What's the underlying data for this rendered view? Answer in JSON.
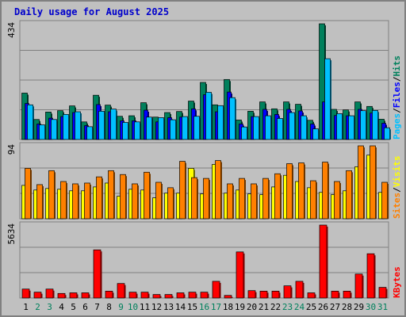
{
  "title": "Daily usage for August 2025",
  "colors": {
    "hits": "#00805c",
    "files": "#0000ff",
    "pages": "#00c0ff",
    "visits": "#ffff00",
    "sites": "#ff8000",
    "kbytes": "#ff0000",
    "separator": "#000000",
    "panel": "#c0c0c0",
    "weekday_label": "#000000",
    "weekend_label": "#00805c"
  },
  "chart_data": [
    {
      "type": "bar",
      "panel": "hits-files-pages",
      "ymax_label": "434",
      "ylim": [
        0,
        434
      ],
      "legend": [
        "Pages",
        "/",
        "Files",
        "/",
        "Hits"
      ],
      "categories": [
        "1",
        "2",
        "3",
        "4",
        "5",
        "6",
        "7",
        "8",
        "9",
        "10",
        "11",
        "12",
        "13",
        "14",
        "15",
        "16",
        "17",
        "18",
        "19",
        "20",
        "21",
        "22",
        "23",
        "24",
        "25",
        "26",
        "27",
        "28",
        "29",
        "30",
        "31"
      ],
      "weekend_days": [
        "2",
        "3",
        "9",
        "10",
        "16",
        "17",
        "23",
        "24",
        "30",
        "31"
      ],
      "series": [
        {
          "name": "Hits",
          "values": [
            174,
            75,
            103,
            108,
            126,
            66,
            166,
            129,
            87,
            89,
            138,
            84,
            101,
            105,
            144,
            214,
            130,
            225,
            73,
            106,
            141,
            115,
            141,
            132,
            72,
            434,
            113,
            111,
            141,
            124,
            76
          ]
        },
        {
          "name": "Files",
          "values": [
            135,
            58,
            80,
            86,
            101,
            52,
            131,
            104,
            70,
            70,
            110,
            66,
            82,
            84,
            115,
            168,
            104,
            178,
            58,
            86,
            113,
            94,
            113,
            107,
            58,
            141,
            90,
            89,
            113,
            99,
            61
          ]
        },
        {
          "name": "Pages",
          "values": [
            130,
            55,
            75,
            94,
            104,
            48,
            106,
            114,
            64,
            66,
            84,
            82,
            74,
            86,
            87,
            177,
            127,
            157,
            47,
            86,
            89,
            79,
            101,
            89,
            40,
            303,
            97,
            89,
            108,
            109,
            44
          ]
        }
      ]
    },
    {
      "type": "bar",
      "panel": "visits-sites",
      "ymax_label": "94",
      "ylim": [
        0,
        94
      ],
      "legend": [
        "Sites",
        "/",
        "Visits"
      ],
      "series": [
        {
          "name": "Visits",
          "values": [
            43,
            37,
            39,
            38,
            36,
            36,
            41,
            46,
            29,
            38,
            37,
            27,
            33,
            33,
            65,
            32,
            70,
            33,
            37,
            32,
            31,
            41,
            56,
            48,
            40,
            34,
            31,
            36,
            67,
            82,
            34
          ]
        },
        {
          "name": "Sites",
          "values": [
            65,
            44,
            62,
            48,
            45,
            46,
            54,
            62,
            57,
            45,
            60,
            47,
            40,
            74,
            53,
            52,
            75,
            45,
            52,
            45,
            52,
            58,
            71,
            72,
            49,
            73,
            48,
            62,
            94,
            94,
            47
          ]
        }
      ]
    },
    {
      "type": "bar",
      "panel": "kbytes",
      "ymax_label": "5634",
      "ylim": [
        0,
        5634
      ],
      "legend": [
        "KBytes"
      ],
      "series": [
        {
          "name": "KBytes",
          "values": [
            690,
            450,
            690,
            350,
            400,
            400,
            3720,
            530,
            1120,
            450,
            450,
            270,
            270,
            400,
            450,
            450,
            1290,
            200,
            3560,
            570,
            530,
            530,
            940,
            1290,
            400,
            5634,
            530,
            530,
            1850,
            3420,
            820
          ]
        }
      ]
    }
  ]
}
